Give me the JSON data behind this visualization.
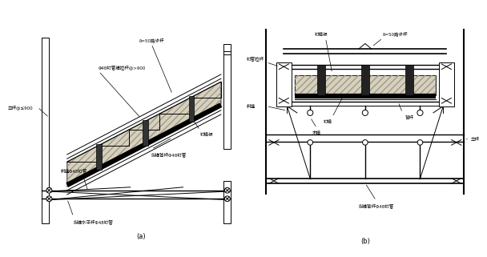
{
  "bg_color": "#ffffff",
  "line_color": "#000000",
  "gray_hatch": "#aaaaaa",
  "title_a": "(a)",
  "title_b": "(b)",
  "labels_a": {
    "step": "δ=50踏步杆",
    "pull_bar": "Φ48钉管横拉杆@>900",
    "vertical": "立杆@≤900",
    "formwork": "钉模板",
    "bg_bar": "纵横背杆Φ48钉管",
    "brace": "斜撞Φ48钉管",
    "horiz": "纵横水平杆Φ48钉管"
  },
  "labels_b": {
    "formwork_plate": "钉模板",
    "step": "δ=50踏步杆",
    "pull_bar": "钉管拉杆",
    "brace": "斜撞",
    "steel_form": "钉模",
    "wood_form": "木模",
    "bg_bar2": "背杆",
    "longit": "纵横背杆Φ48钉管",
    "vertical2": "立杆"
  }
}
